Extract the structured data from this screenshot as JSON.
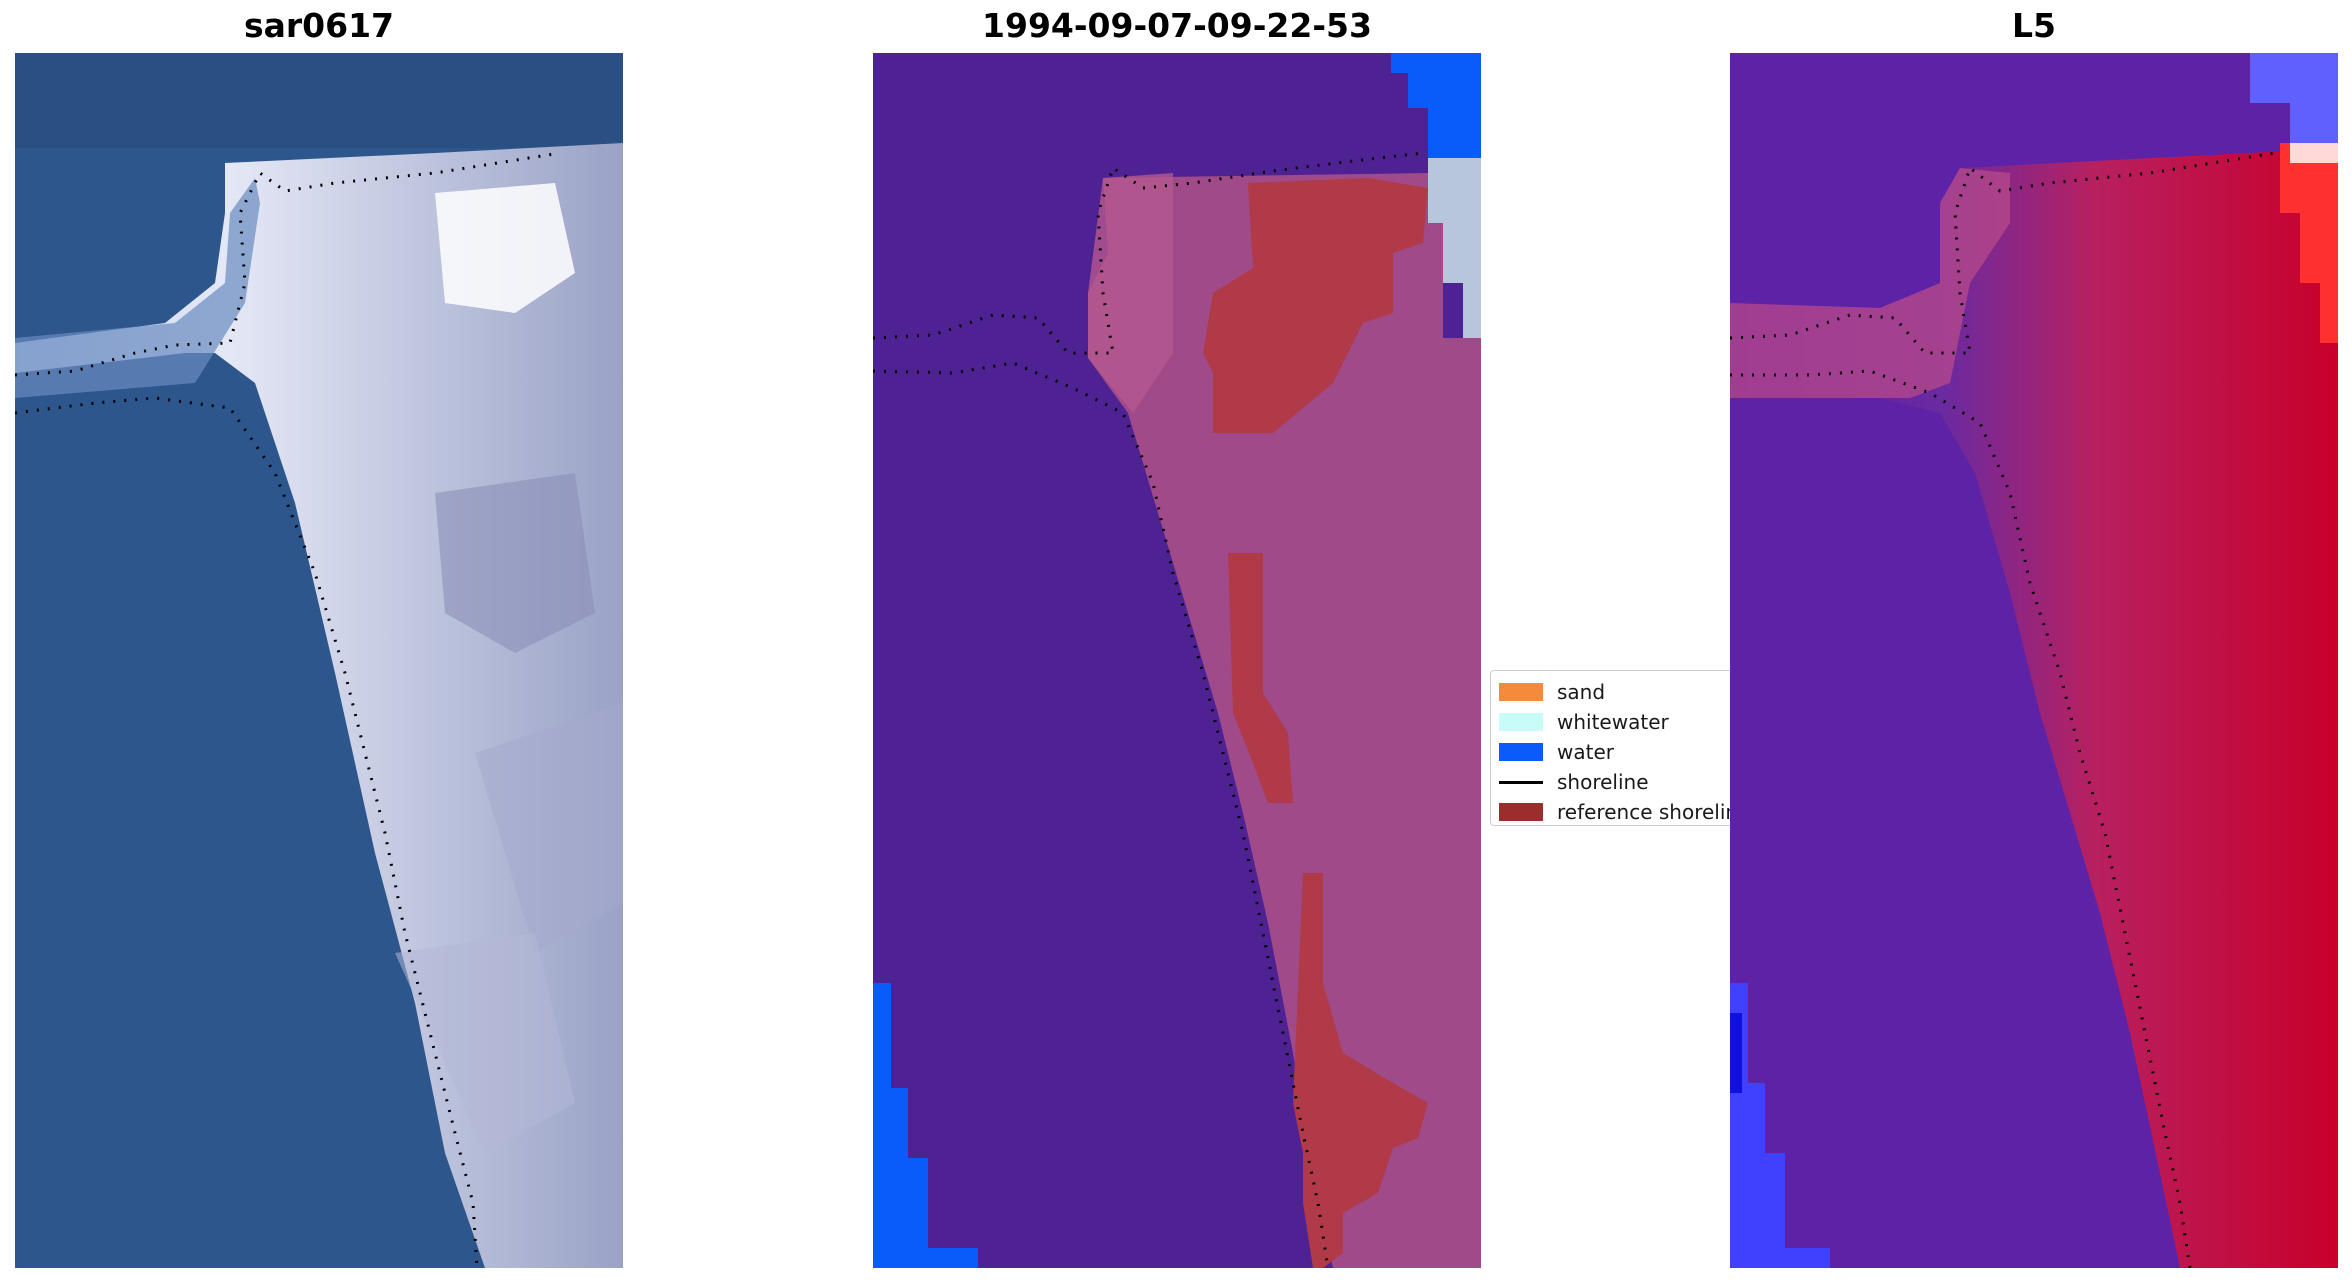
{
  "figure": {
    "panels": [
      {
        "title": "sar0617",
        "content": "rgb-image"
      },
      {
        "title": "1994-09-07-09-22-53",
        "content": "classified-image"
      },
      {
        "title": "L5",
        "content": "index-image"
      }
    ]
  },
  "legend": {
    "items": [
      {
        "label": "sand",
        "color": "#f68a3c",
        "kind": "patch"
      },
      {
        "label": "whitewater",
        "color": "#c8fcf8",
        "kind": "patch"
      },
      {
        "label": "water",
        "color": "#0a5cfa",
        "kind": "patch"
      },
      {
        "label": "shoreline",
        "color": "#000000",
        "kind": "line"
      },
      {
        "label": "reference shoreline",
        "color": "#9b2d2d",
        "kind": "patch"
      }
    ]
  },
  "colors": {
    "sea_blue": "#2a5489",
    "class_purple": "#4f2293",
    "class_red": "#b03a48",
    "index_purple": "#5a1aa8",
    "index_red": "#c8002a"
  }
}
